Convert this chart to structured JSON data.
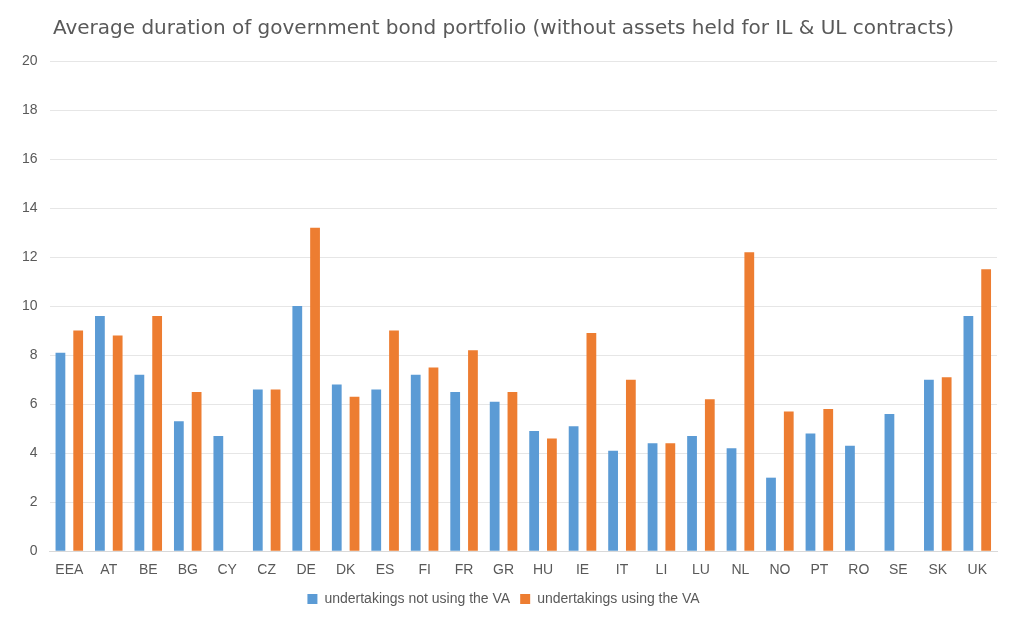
{
  "chart_data": {
    "type": "bar",
    "title": "Average duration of government bond portfolio (without assets held for IL & UL contracts)",
    "categories": [
      "EEA",
      "AT",
      "BE",
      "BG",
      "CY",
      "CZ",
      "DE",
      "DK",
      "ES",
      "FI",
      "FR",
      "GR",
      "HU",
      "IE",
      "IT",
      "LI",
      "LU",
      "NL",
      "NO",
      "PT",
      "RO",
      "SE",
      "SK",
      "UK"
    ],
    "series": [
      {
        "name": "undertakings not using the VA",
        "color": "#5b9bd5",
        "values": [
          8.1,
          9.6,
          7.2,
          5.3,
          4.7,
          6.6,
          10.0,
          6.8,
          6.6,
          7.2,
          6.5,
          6.1,
          4.9,
          5.1,
          4.1,
          4.4,
          4.7,
          4.2,
          3.0,
          4.8,
          4.3,
          5.6,
          7.0,
          9.6
        ]
      },
      {
        "name": "undertakings using the VA",
        "color": "#ed7d31",
        "values": [
          9.0,
          8.8,
          9.6,
          6.5,
          null,
          6.6,
          13.2,
          6.3,
          9.0,
          7.5,
          8.2,
          6.5,
          4.6,
          8.9,
          7.0,
          4.4,
          6.2,
          12.2,
          5.7,
          5.8,
          null,
          null,
          7.1,
          11.5
        ]
      }
    ],
    "ylim": [
      0,
      20
    ],
    "yticks": [
      0,
      2,
      4,
      6,
      8,
      10,
      12,
      14,
      16,
      18,
      20
    ],
    "grid": "y",
    "legend": "bottom"
  }
}
